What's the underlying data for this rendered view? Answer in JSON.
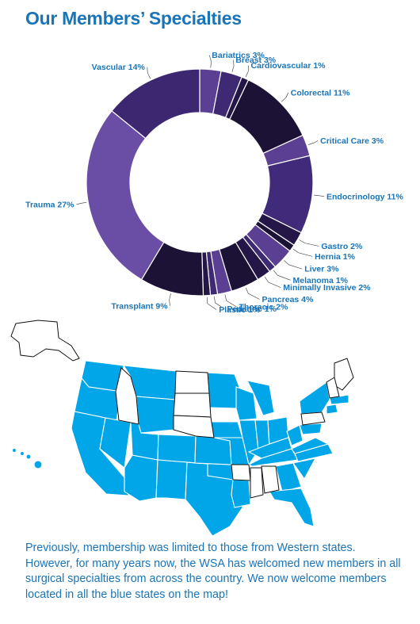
{
  "title": "Our Members’ Specialties",
  "chart_data": {
    "type": "pie",
    "title": "Our Members’ Specialties",
    "slices": [
      {
        "label": "Bariatrics 3%",
        "value": 3,
        "color": "#5a3f92"
      },
      {
        "label": "Breast 3%",
        "value": 3,
        "color": "#3d2a72"
      },
      {
        "label": "Cardiovascular 1%",
        "value": 1,
        "color": "#241748"
      },
      {
        "label": "Colorectal 11%",
        "value": 11,
        "color": "#1b1236"
      },
      {
        "label": "Critical Care 3%",
        "value": 3,
        "color": "#5a3f92"
      },
      {
        "label": "Endocrinology 11%",
        "value": 11,
        "color": "#3f2b7a"
      },
      {
        "label": "Gastro 2%",
        "value": 2,
        "color": "#241748"
      },
      {
        "label": "Hernia 1%",
        "value": 1,
        "color": "#1b1236"
      },
      {
        "label": "Liver 3%",
        "value": 3,
        "color": "#5a3f92"
      },
      {
        "label": "Melanoma 1%",
        "value": 1,
        "color": "#3d2a72"
      },
      {
        "label": "Minimally Invasive 2%",
        "value": 2,
        "color": "#241748"
      },
      {
        "label": "Pancreas 4%",
        "value": 4,
        "color": "#1b1236"
      },
      {
        "label": "Thoracic 2%",
        "value": 2,
        "color": "#5a3f92"
      },
      {
        "label": "Pediatric 1%",
        "value": 1,
        "color": "#3d2a72"
      },
      {
        "label": "Plastic 1%",
        "value": 1,
        "color": "#241748"
      },
      {
        "label": "Transplant 9%",
        "value": 9,
        "color": "#1b1236"
      },
      {
        "label": "Trauma 27%",
        "value": 27,
        "color": "#6a4ea6"
      },
      {
        "label": "Vascular 14%",
        "value": 14,
        "color": "#3b2870"
      }
    ]
  },
  "map": {
    "blue": "#00a6e8",
    "white": "#ffffff"
  },
  "caption": "Previously, membership was limited to those from Western states. However, for many years now, the WSA has welcomed new members in all surgical specialties from across the country. We now welcome members located in all the blue states on the map!"
}
